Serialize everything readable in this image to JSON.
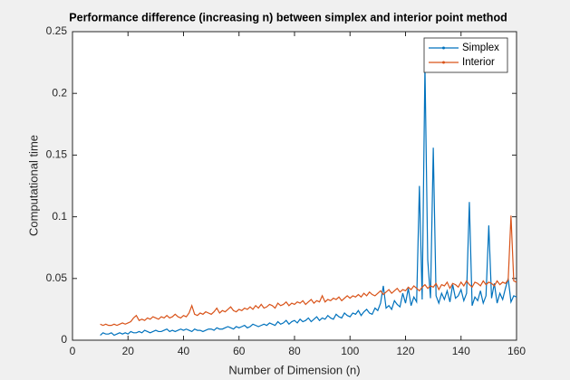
{
  "chart_data": {
    "type": "line",
    "title": "Performance difference (increasing n) between simplex and interior point method",
    "xlabel": "Number of Dimension (n)",
    "ylabel": "Computational time",
    "xlim": [
      0,
      160
    ],
    "xticks": [
      0,
      20,
      40,
      60,
      80,
      100,
      120,
      140,
      160
    ],
    "ylim": [
      0,
      0.25
    ],
    "yticks": [
      0,
      0.05,
      0.1,
      0.15,
      0.2,
      0.25
    ],
    "grid": false,
    "legend": "northeast",
    "x": [
      10,
      11,
      12,
      13,
      14,
      15,
      16,
      17,
      18,
      19,
      20,
      21,
      22,
      23,
      24,
      25,
      26,
      27,
      28,
      29,
      30,
      31,
      32,
      33,
      34,
      35,
      36,
      37,
      38,
      39,
      40,
      41,
      42,
      43,
      44,
      45,
      46,
      47,
      48,
      49,
      50,
      51,
      52,
      53,
      54,
      55,
      56,
      57,
      58,
      59,
      60,
      61,
      62,
      63,
      64,
      65,
      66,
      67,
      68,
      69,
      70,
      71,
      72,
      73,
      74,
      75,
      76,
      77,
      78,
      79,
      80,
      81,
      82,
      83,
      84,
      85,
      86,
      87,
      88,
      89,
      90,
      91,
      92,
      93,
      94,
      95,
      96,
      97,
      98,
      99,
      100,
      101,
      102,
      103,
      104,
      105,
      106,
      107,
      108,
      109,
      110,
      111,
      112,
      113,
      114,
      115,
      116,
      117,
      118,
      119,
      120,
      121,
      122,
      123,
      124,
      125,
      126,
      127,
      128,
      129,
      130,
      131,
      132,
      133,
      134,
      135,
      136,
      137,
      138,
      139,
      140,
      141,
      142,
      143,
      144,
      145,
      146,
      147,
      148,
      149,
      150,
      151,
      152,
      153,
      154,
      155,
      156,
      157,
      158,
      159,
      160
    ],
    "series": [
      {
        "name": "Simplex",
        "color": "#0072BD",
        "values": [
          0.004,
          0.006,
          0.005,
          0.005,
          0.006,
          0.004,
          0.005,
          0.006,
          0.005,
          0.006,
          0.005,
          0.007,
          0.006,
          0.006,
          0.007,
          0.006,
          0.008,
          0.007,
          0.006,
          0.007,
          0.008,
          0.007,
          0.007,
          0.008,
          0.009,
          0.007,
          0.008,
          0.007,
          0.008,
          0.009,
          0.008,
          0.009,
          0.008,
          0.007,
          0.009,
          0.008,
          0.008,
          0.007,
          0.008,
          0.009,
          0.009,
          0.008,
          0.01,
          0.009,
          0.009,
          0.01,
          0.011,
          0.01,
          0.009,
          0.011,
          0.01,
          0.011,
          0.012,
          0.01,
          0.011,
          0.013,
          0.012,
          0.011,
          0.012,
          0.013,
          0.012,
          0.014,
          0.013,
          0.012,
          0.015,
          0.013,
          0.014,
          0.016,
          0.013,
          0.015,
          0.016,
          0.014,
          0.017,
          0.015,
          0.016,
          0.018,
          0.015,
          0.017,
          0.019,
          0.016,
          0.018,
          0.017,
          0.02,
          0.018,
          0.017,
          0.021,
          0.019,
          0.018,
          0.022,
          0.02,
          0.019,
          0.022,
          0.021,
          0.024,
          0.02,
          0.023,
          0.025,
          0.022,
          0.021,
          0.026,
          0.024,
          0.03,
          0.044,
          0.026,
          0.028,
          0.025,
          0.032,
          0.029,
          0.027,
          0.038,
          0.03,
          0.042,
          0.028,
          0.035,
          0.031,
          0.125,
          0.033,
          0.222,
          0.065,
          0.034,
          0.156,
          0.036,
          0.03,
          0.038,
          0.033,
          0.04,
          0.031,
          0.045,
          0.034,
          0.036,
          0.041,
          0.032,
          0.038,
          0.112,
          0.028,
          0.035,
          0.032,
          0.04,
          0.03,
          0.036,
          0.093,
          0.034,
          0.046,
          0.03,
          0.038,
          0.033,
          0.042,
          0.05,
          0.031,
          0.036,
          0.035
        ]
      },
      {
        "name": "Interior",
        "color": "#D95319",
        "values": [
          0.013,
          0.012,
          0.013,
          0.012,
          0.012,
          0.013,
          0.012,
          0.013,
          0.014,
          0.013,
          0.014,
          0.015,
          0.018,
          0.02,
          0.016,
          0.017,
          0.016,
          0.018,
          0.017,
          0.019,
          0.018,
          0.017,
          0.019,
          0.018,
          0.02,
          0.018,
          0.019,
          0.021,
          0.019,
          0.018,
          0.02,
          0.019,
          0.022,
          0.028,
          0.021,
          0.02,
          0.022,
          0.021,
          0.023,
          0.022,
          0.021,
          0.023,
          0.026,
          0.022,
          0.024,
          0.023,
          0.025,
          0.027,
          0.024,
          0.023,
          0.025,
          0.024,
          0.026,
          0.025,
          0.027,
          0.025,
          0.028,
          0.026,
          0.029,
          0.026,
          0.027,
          0.029,
          0.028,
          0.026,
          0.03,
          0.028,
          0.029,
          0.031,
          0.028,
          0.03,
          0.029,
          0.031,
          0.03,
          0.032,
          0.029,
          0.031,
          0.033,
          0.03,
          0.032,
          0.031,
          0.036,
          0.031,
          0.033,
          0.032,
          0.034,
          0.033,
          0.035,
          0.032,
          0.034,
          0.036,
          0.034,
          0.036,
          0.035,
          0.037,
          0.035,
          0.038,
          0.036,
          0.039,
          0.037,
          0.036,
          0.038,
          0.04,
          0.037,
          0.039,
          0.041,
          0.038,
          0.04,
          0.042,
          0.039,
          0.041,
          0.04,
          0.043,
          0.041,
          0.044,
          0.042,
          0.04,
          0.043,
          0.045,
          0.042,
          0.044,
          0.043,
          0.046,
          0.041,
          0.045,
          0.044,
          0.047,
          0.042,
          0.046,
          0.045,
          0.043,
          0.047,
          0.044,
          0.048,
          0.045,
          0.043,
          0.047,
          0.046,
          0.044,
          0.048,
          0.045,
          0.047,
          0.046,
          0.044,
          0.048,
          0.045,
          0.047,
          0.046,
          0.049,
          0.101,
          0.048,
          0.047
        ]
      }
    ]
  }
}
